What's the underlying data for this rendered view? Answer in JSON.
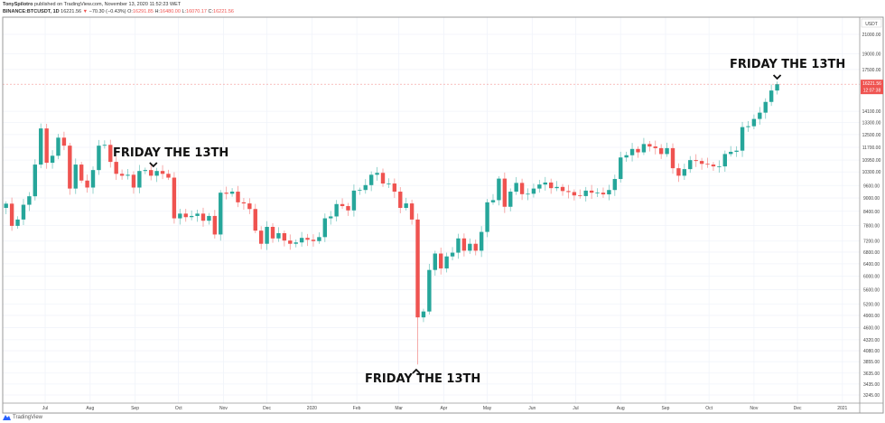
{
  "header": {
    "author": "TonySpilotro",
    "published_text": "published on TradingView.com, November 13, 2020 11:52:23 WET",
    "symbol": "BINANCE:BTCUSDT, 1D",
    "last": "16221.56",
    "change": "−70.30 (−0.43%)",
    "open_label": "O:",
    "open": "16291.85",
    "high_label": "H:",
    "high": "16480.00",
    "low_label": "L:",
    "low": "16070.17",
    "close_label": "C:",
    "close": "16221.56"
  },
  "price_tag": {
    "price": "16221.56",
    "countdown": "12:07:38"
  },
  "currency": "USDT",
  "logo_text": "TradingView",
  "annotations": [
    {
      "text": "FRIDAY THE 13TH",
      "date": "2019-09-13",
      "marker": "caret-down"
    },
    {
      "text": "FRIDAY THE 13TH",
      "date": "2020-03-13",
      "marker": "caret-up"
    },
    {
      "text": "FRIDAY THE 13TH",
      "date": "2020-11-13",
      "marker": "caret-down"
    }
  ],
  "chart_data": {
    "type": "candlestick",
    "title": "",
    "y_scale": "log",
    "ylim": [
      3245,
      21000
    ],
    "grid": true,
    "colors": {
      "up": "#26a69a",
      "down": "#ef5350"
    },
    "y_ticks": [
      "21000.00",
      "19000.00",
      "17500.00",
      "14100.00",
      "13300.00",
      "12500.00",
      "11700.00",
      "10950.00",
      "10300.00",
      "9600.00",
      "9000.00",
      "8400.00",
      "7800.00",
      "7200.00",
      "6800.00",
      "6400.00",
      "6000.00",
      "5600.00",
      "5200.00",
      "4900.00",
      "4600.00",
      "4320.00",
      "4080.00",
      "3855.00",
      "3635.00",
      "3435.00",
      "3245.00"
    ],
    "x_ticks": [
      {
        "label": "Jul",
        "date": "2019-07-01"
      },
      {
        "label": "Aug",
        "date": "2019-08-01"
      },
      {
        "label": "Sep",
        "date": "2019-09-01"
      },
      {
        "label": "Oct",
        "date": "2019-10-01"
      },
      {
        "label": "Nov",
        "date": "2019-11-01"
      },
      {
        "label": "Dec",
        "date": "2019-12-01"
      },
      {
        "label": "2020",
        "date": "2020-01-01"
      },
      {
        "label": "Feb",
        "date": "2020-02-01"
      },
      {
        "label": "Mar",
        "date": "2020-03-01"
      },
      {
        "label": "Apr",
        "date": "2020-04-01"
      },
      {
        "label": "May",
        "date": "2020-05-01"
      },
      {
        "label": "Jun",
        "date": "2020-06-01"
      },
      {
        "label": "Jul",
        "date": "2020-07-01"
      },
      {
        "label": "Aug",
        "date": "2020-08-01"
      },
      {
        "label": "Sep",
        "date": "2020-09-01"
      },
      {
        "label": "Oct",
        "date": "2020-10-01"
      },
      {
        "label": "Nov",
        "date": "2020-11-01"
      },
      {
        "label": "Dec",
        "date": "2020-12-01"
      },
      {
        "label": "2021",
        "date": "2021-01-01"
      }
    ],
    "start_date": "2019-06-02",
    "step_days": 4,
    "first_open": 8550,
    "closes": [
      8740,
      7790,
      8050,
      8690,
      9080,
      10700,
      12900,
      10800,
      11200,
      12300,
      11800,
      9450,
      10700,
      9850,
      9500,
      10400,
      11800,
      11850,
      10850,
      10200,
      10100,
      10150,
      9500,
      10350,
      10400,
      10100,
      10350,
      10200,
      10000,
      8100,
      8300,
      8150,
      8200,
      8300,
      8000,
      8200,
      7450,
      9250,
      9200,
      9300,
      8800,
      8750,
      8500,
      7600,
      7100,
      7750,
      7300,
      7500,
      7220,
      7100,
      7150,
      7320,
      7250,
      7200,
      7350,
      8100,
      8180,
      8720,
      8630,
      8440,
      9350,
      9380,
      9620,
      10150,
      10250,
      9700,
      9700,
      9300,
      8550,
      8750,
      8050,
      4850,
      5000,
      6200,
      6750,
      6250,
      6650,
      6780,
      7300,
      6850,
      7100,
      6850,
      7550,
      8800,
      8900,
      9950,
      8600,
      9300,
      9730,
      9180,
      9200,
      9450,
      9650,
      9750,
      9470,
      9530,
      9330,
      9280,
      9120,
      9090,
      9350,
      9250,
      9250,
      9170,
      9380,
      9930,
      11100,
      11230,
      11600,
      11400,
      11900,
      11750,
      11650,
      11300,
      11650,
      10500,
      10100,
      10450,
      10950,
      10900,
      10740,
      10700,
      10600,
      10600,
      11300,
      11430,
      11500,
      12990,
      13050,
      13550,
      14000,
      14800,
      15700,
      16221.56
    ]
  }
}
